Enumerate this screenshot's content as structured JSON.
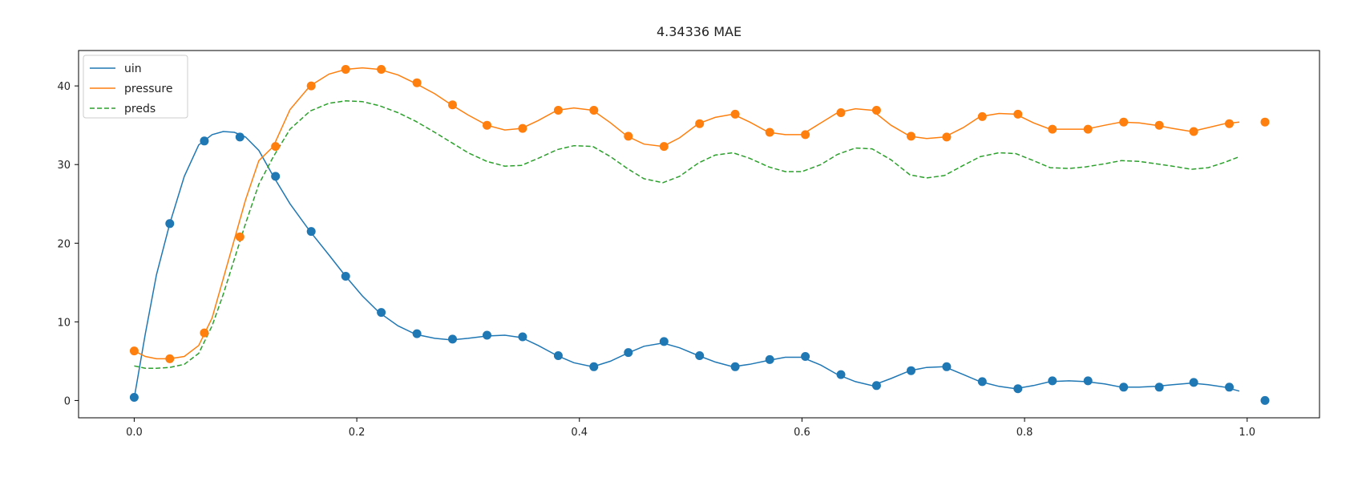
{
  "chart_data": {
    "type": "line",
    "title": "4.34336  MAE",
    "xlabel": "",
    "ylabel": "",
    "xlim": [
      -0.05,
      1.065
    ],
    "ylim": [
      -2.2,
      44.5
    ],
    "xticks": [
      0.0,
      0.2,
      0.4,
      0.6,
      0.8,
      1.0
    ],
    "xtick_labels": [
      "0.0",
      "0.2",
      "0.4",
      "0.6",
      "0.8",
      "1.0"
    ],
    "yticks": [
      0,
      10,
      20,
      30,
      40
    ],
    "ytick_labels": [
      "0",
      "10",
      "20",
      "30",
      "40"
    ],
    "grid": false,
    "legend_position": "top-left",
    "series": [
      {
        "name": "uin",
        "color": "#1f77b4",
        "style": "solid",
        "x": [
          0.0,
          0.01,
          0.02,
          0.032,
          0.045,
          0.058,
          0.07,
          0.08,
          0.09,
          0.1,
          0.112,
          0.125,
          0.14,
          0.158,
          0.175,
          0.19,
          0.205,
          0.22,
          0.237,
          0.253,
          0.27,
          0.285,
          0.3,
          0.317,
          0.333,
          0.348,
          0.363,
          0.38,
          0.395,
          0.412,
          0.428,
          0.443,
          0.458,
          0.475,
          0.49,
          0.507,
          0.522,
          0.538,
          0.553,
          0.57,
          0.585,
          0.6,
          0.617,
          0.632,
          0.648,
          0.663,
          0.68,
          0.697,
          0.712,
          0.728,
          0.745,
          0.76,
          0.777,
          0.792,
          0.808,
          0.823,
          0.84,
          0.855,
          0.872,
          0.887,
          0.903,
          0.918,
          0.933,
          0.95,
          0.965,
          0.98,
          0.993
        ],
        "y": [
          0.3,
          8.5,
          16.0,
          22.5,
          28.5,
          32.5,
          33.8,
          34.2,
          34.1,
          33.5,
          31.8,
          28.5,
          25.0,
          21.5,
          18.5,
          15.8,
          13.3,
          11.2,
          9.5,
          8.4,
          7.9,
          7.7,
          7.9,
          8.2,
          8.3,
          8.0,
          7.0,
          5.7,
          4.8,
          4.3,
          5.0,
          6.0,
          6.9,
          7.3,
          6.7,
          5.7,
          4.9,
          4.3,
          4.6,
          5.1,
          5.5,
          5.5,
          4.5,
          3.3,
          2.4,
          1.9,
          2.8,
          3.8,
          4.2,
          4.3,
          3.3,
          2.4,
          1.8,
          1.5,
          1.9,
          2.4,
          2.5,
          2.4,
          2.1,
          1.7,
          1.7,
          1.8,
          2.0,
          2.2,
          2.0,
          1.7,
          1.2
        ]
      },
      {
        "name": "pressure",
        "color": "#ff7f0e",
        "style": "solid",
        "x": [
          0.0,
          0.01,
          0.02,
          0.032,
          0.045,
          0.058,
          0.07,
          0.08,
          0.09,
          0.1,
          0.112,
          0.125,
          0.14,
          0.158,
          0.175,
          0.19,
          0.205,
          0.22,
          0.237,
          0.253,
          0.27,
          0.285,
          0.3,
          0.317,
          0.333,
          0.348,
          0.363,
          0.38,
          0.395,
          0.412,
          0.428,
          0.443,
          0.458,
          0.475,
          0.49,
          0.507,
          0.522,
          0.538,
          0.553,
          0.57,
          0.585,
          0.6,
          0.617,
          0.632,
          0.648,
          0.663,
          0.68,
          0.697,
          0.712,
          0.728,
          0.745,
          0.76,
          0.777,
          0.792,
          0.808,
          0.823,
          0.84,
          0.855,
          0.872,
          0.887,
          0.903,
          0.918,
          0.933,
          0.95,
          0.965,
          0.98,
          0.993
        ],
        "y": [
          6.3,
          5.6,
          5.3,
          5.3,
          5.6,
          7.0,
          10.5,
          15.5,
          20.5,
          25.5,
          30.5,
          32.3,
          37.0,
          40.0,
          41.5,
          42.1,
          42.3,
          42.1,
          41.4,
          40.3,
          39.0,
          37.6,
          36.3,
          35.0,
          34.4,
          34.6,
          35.6,
          36.9,
          37.2,
          36.9,
          35.3,
          33.6,
          32.6,
          32.3,
          33.4,
          35.2,
          36.0,
          36.4,
          35.4,
          34.1,
          33.8,
          33.8,
          35.3,
          36.6,
          37.1,
          36.9,
          35.0,
          33.6,
          33.3,
          33.5,
          34.7,
          36.1,
          36.5,
          36.4,
          35.3,
          34.5,
          34.5,
          34.5,
          35.0,
          35.4,
          35.3,
          35.0,
          34.6,
          34.2,
          34.7,
          35.2,
          35.4
        ]
      },
      {
        "name": "preds",
        "color": "#2ca02c",
        "style": "dashed",
        "x": [
          0.0,
          0.01,
          0.02,
          0.032,
          0.045,
          0.058,
          0.07,
          0.08,
          0.09,
          0.1,
          0.112,
          0.125,
          0.14,
          0.158,
          0.175,
          0.19,
          0.205,
          0.22,
          0.237,
          0.253,
          0.27,
          0.285,
          0.3,
          0.317,
          0.333,
          0.348,
          0.363,
          0.38,
          0.395,
          0.412,
          0.428,
          0.443,
          0.458,
          0.475,
          0.49,
          0.507,
          0.522,
          0.538,
          0.553,
          0.57,
          0.585,
          0.6,
          0.617,
          0.632,
          0.648,
          0.663,
          0.68,
          0.697,
          0.712,
          0.728,
          0.745,
          0.76,
          0.777,
          0.792,
          0.808,
          0.823,
          0.84,
          0.855,
          0.872,
          0.887,
          0.903,
          0.918,
          0.933,
          0.95,
          0.965,
          0.98,
          0.993
        ],
        "y": [
          4.4,
          4.1,
          4.1,
          4.2,
          4.6,
          6.0,
          9.5,
          13.5,
          18.0,
          22.5,
          27.5,
          31.0,
          34.5,
          36.8,
          37.8,
          38.1,
          38.0,
          37.5,
          36.6,
          35.5,
          34.1,
          32.8,
          31.5,
          30.4,
          29.8,
          29.9,
          30.8,
          31.9,
          32.4,
          32.3,
          31.0,
          29.5,
          28.2,
          27.7,
          28.5,
          30.2,
          31.2,
          31.5,
          30.8,
          29.7,
          29.1,
          29.1,
          30.0,
          31.3,
          32.1,
          32.0,
          30.6,
          28.7,
          28.3,
          28.6,
          29.9,
          31.0,
          31.5,
          31.4,
          30.5,
          29.6,
          29.5,
          29.7,
          30.1,
          30.5,
          30.4,
          30.1,
          29.8,
          29.4,
          29.6,
          30.3,
          31.0
        ]
      }
    ],
    "markers": [
      {
        "series": "uin",
        "color": "#1f77b4",
        "x": [
          0.0,
          0.032,
          0.063,
          0.095,
          0.127,
          0.159,
          0.19,
          0.222,
          0.254,
          0.286,
          0.317,
          0.349,
          0.381,
          0.413,
          0.444,
          0.476,
          0.508,
          0.54,
          0.571,
          0.603,
          0.635,
          0.667,
          0.698,
          0.73,
          0.762,
          0.794,
          0.825,
          0.857,
          0.889,
          0.921,
          0.952,
          0.984,
          1.016
        ],
        "y": [
          0.4,
          22.5,
          33.0,
          33.5,
          28.5,
          21.5,
          15.8,
          11.2,
          8.5,
          7.8,
          8.3,
          8.1,
          5.7,
          4.3,
          6.1,
          7.5,
          5.7,
          4.3,
          5.2,
          5.6,
          3.3,
          1.9,
          3.8,
          4.3,
          2.4,
          1.5,
          2.5,
          2.5,
          1.7,
          1.7,
          2.3,
          1.7,
          0.0
        ]
      },
      {
        "series": "pressure",
        "color": "#ff7f0e",
        "x": [
          0.0,
          0.032,
          0.063,
          0.095,
          0.127,
          0.159,
          0.19,
          0.222,
          0.254,
          0.286,
          0.317,
          0.349,
          0.381,
          0.413,
          0.444,
          0.476,
          0.508,
          0.54,
          0.571,
          0.603,
          0.635,
          0.667,
          0.698,
          0.73,
          0.762,
          0.794,
          0.825,
          0.857,
          0.889,
          0.921,
          0.952,
          0.984,
          1.016
        ],
        "y": [
          6.3,
          5.3,
          8.6,
          20.8,
          32.3,
          40.0,
          42.1,
          42.1,
          40.4,
          37.6,
          35.0,
          34.6,
          36.9,
          36.9,
          33.6,
          32.3,
          35.2,
          36.4,
          34.1,
          33.8,
          36.6,
          36.9,
          33.6,
          33.5,
          36.1,
          36.4,
          34.5,
          34.5,
          35.4,
          35.0,
          34.2,
          35.2,
          35.4
        ]
      }
    ]
  }
}
